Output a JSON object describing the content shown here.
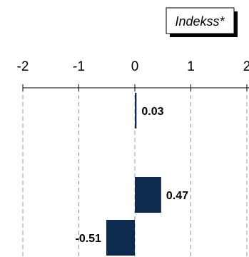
{
  "chart_data": {
    "type": "bar",
    "orientation": "horizontal",
    "categories": [
      "",
      "",
      ""
    ],
    "values": [
      0.03,
      0.47,
      -0.51
    ],
    "value_labels": [
      "0.03",
      "0.47",
      "-0.51"
    ],
    "xlim": [
      -2,
      2
    ],
    "x_ticks": [
      -2,
      -1,
      0,
      1,
      2
    ],
    "x_tick_labels": [
      "-2",
      "-1",
      "0",
      "1",
      "2"
    ],
    "legend": "Indekss*",
    "legend_position": "top-right",
    "grid": "vertical-dashed",
    "bar_color": "#0d2a4f"
  }
}
